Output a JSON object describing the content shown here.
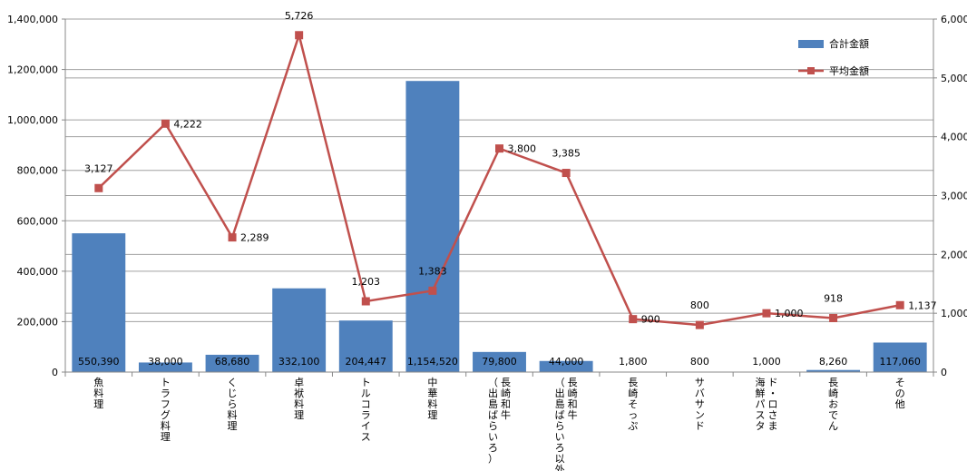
{
  "chart_data": {
    "type": "bar+line",
    "categories": [
      "魚料理",
      "トラフグ料理",
      "くじら料理",
      "卓袱料理",
      "トルコライス",
      "中華料理",
      "長崎和牛（出島ばらいろ）",
      "長崎和牛（出島ばらいろ以外）",
      "長崎そっぷ",
      "サバサンド",
      "ド・ロさま海鮮パスタ",
      "長崎おでん",
      "その他"
    ],
    "category_lines": [
      [
        "魚料理"
      ],
      [
        "トラフグ料理"
      ],
      [
        "くじら料理"
      ],
      [
        "卓袱料理"
      ],
      [
        "トルコライス"
      ],
      [
        "中華料理"
      ],
      [
        "長崎和牛",
        "（出島ばらいろ）"
      ],
      [
        "長崎和牛",
        "（出島ばらいろ以外）"
      ],
      [
        "長崎そっぷ"
      ],
      [
        "サバサンド"
      ],
      [
        "ド・ロさま",
        "海鮮パスタ"
      ],
      [
        "長崎おでん"
      ],
      [
        "その他"
      ]
    ],
    "series": [
      {
        "name": "合計金額",
        "kind": "bar",
        "axis": "left",
        "color": "#4F81BD",
        "values": [
          550390,
          38000,
          68680,
          332100,
          204447,
          1154520,
          79800,
          44000,
          1800,
          800,
          1000,
          8260,
          117060
        ],
        "labels": [
          "550,390",
          "38,000",
          "68,680",
          "332,100",
          "204,447",
          "1,154,520",
          "79,800",
          "44,000",
          "1,800",
          "800",
          "1,000",
          "8,260",
          "117,060"
        ]
      },
      {
        "name": "平均金額",
        "kind": "line",
        "axis": "right",
        "color": "#C0504D",
        "values": [
          3127,
          4222,
          2289,
          5726,
          1203,
          1383,
          3800,
          3385,
          900,
          800,
          1000,
          918,
          1137
        ],
        "labels": [
          "3,127",
          "4,222",
          "2,289",
          "5,726",
          "1,203",
          "1,383",
          "3,800",
          "3,385",
          "900",
          "800",
          "1,000",
          "918",
          "1,137"
        ]
      }
    ],
    "y_left": {
      "range": [
        0,
        1400000
      ],
      "ticks": [
        0,
        200000,
        400000,
        600000,
        800000,
        1000000,
        1200000,
        1400000
      ],
      "tick_labels": [
        "0",
        "200,000",
        "400,000",
        "600,000",
        "800,000",
        "1,000,000",
        "1,200,000",
        "1,400,000"
      ]
    },
    "y_right": {
      "range": [
        0,
        6000
      ],
      "ticks": [
        0,
        1000,
        2000,
        3000,
        4000,
        5000,
        6000
      ],
      "tick_labels": [
        "0",
        "1,000",
        "2,000",
        "3,000",
        "4,000",
        "5,000",
        "6,000"
      ]
    },
    "grid": true,
    "legend": "top-right",
    "title": "",
    "xlabel": "",
    "ylabel": ""
  }
}
